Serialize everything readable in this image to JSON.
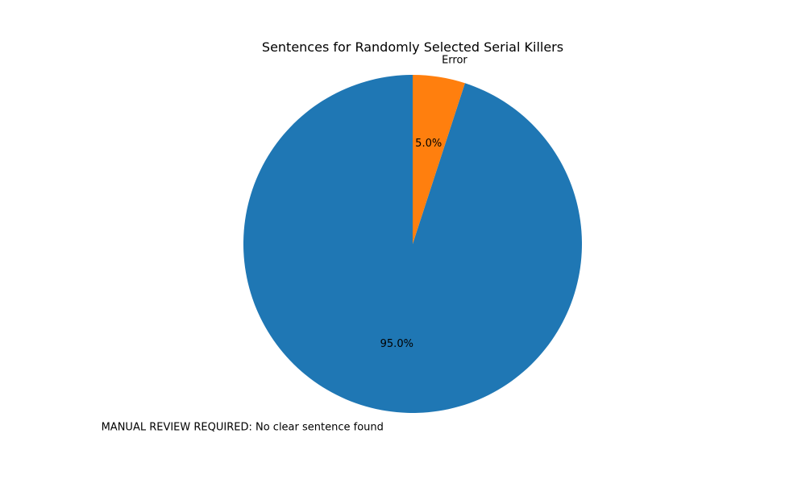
{
  "chart_data": {
    "type": "pie",
    "title": "Sentences for Randomly Selected Serial Killers",
    "start_angle_deg": 90,
    "direction": "counterclockwise",
    "legend": "none",
    "slices": [
      {
        "label": "MANUAL REVIEW REQUIRED: No clear sentence found",
        "value": 95.0,
        "pct_label": "95.0%",
        "color": "#1f77b4"
      },
      {
        "label": "Error",
        "value": 5.0,
        "pct_label": "5.0%",
        "color": "#ff7f0e"
      }
    ]
  }
}
